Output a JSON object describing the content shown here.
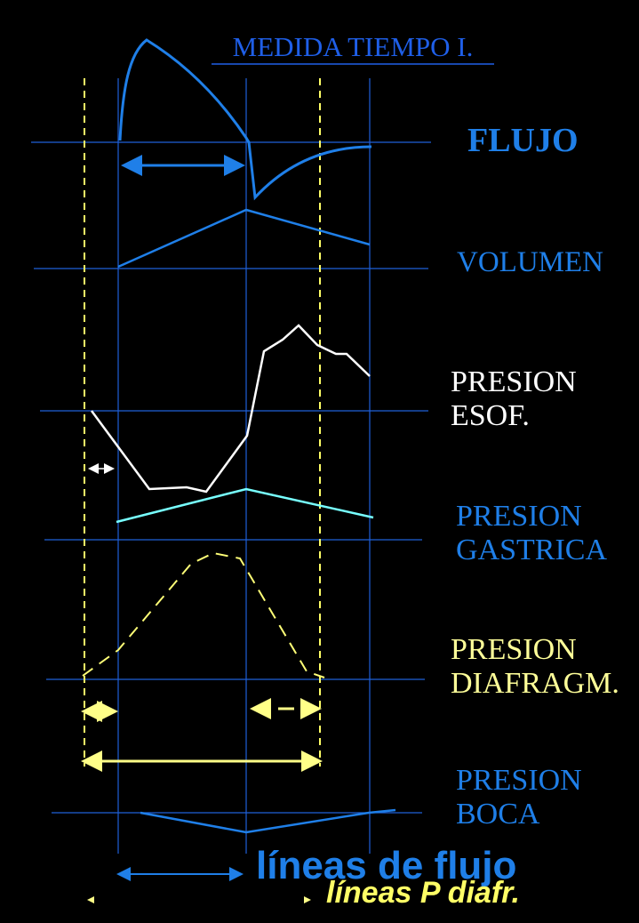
{
  "title": "MEDIDA TIEMPO I.",
  "labels": [
    {
      "lines": [
        "FLUJO"
      ]
    },
    {
      "lines": [
        "VOLUMEN"
      ]
    },
    {
      "lines": [
        "PRESION",
        "ESOF."
      ]
    },
    {
      "lines": [
        "PRESION",
        "GASTRICA"
      ]
    },
    {
      "lines": [
        "PRESION",
        "DIAFRAGM."
      ]
    },
    {
      "lines": [
        "PRESION",
        "BOCA"
      ]
    }
  ],
  "legend": {
    "flow_lines": "líneas de flujo",
    "diaphragm_lines": "líneas P diafr."
  }
}
